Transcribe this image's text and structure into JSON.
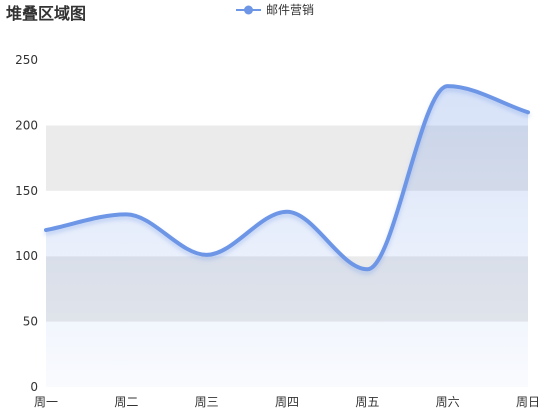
{
  "chart_data": {
    "type": "area",
    "title": "堆叠区域图",
    "categories": [
      "周一",
      "周二",
      "周三",
      "周四",
      "周五",
      "周六",
      "周日"
    ],
    "y_ticks": [
      0,
      50,
      100,
      150,
      200,
      250
    ],
    "ylim": [
      0,
      250
    ],
    "grid": "alternating-bands",
    "legend_position": "top-center",
    "series": [
      {
        "name": "邮件营销",
        "values": [
          120,
          132,
          101,
          134,
          90,
          230,
          210
        ],
        "color": "#6e96e6",
        "smooth": true
      }
    ]
  }
}
